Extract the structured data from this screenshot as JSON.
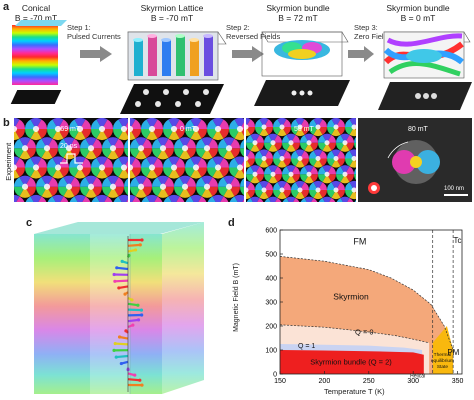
{
  "panel_a": {
    "label": "a",
    "stages": [
      {
        "title": "Conical",
        "field": "B = -70 mT"
      },
      {
        "title": "Skyrmion Lattice",
        "field": "B = -70 mT"
      },
      {
        "title": "Skyrmion bundle",
        "field": "B = 72 mT"
      },
      {
        "title": "Skyrmion bundle",
        "field": "B = 0 mT"
      }
    ],
    "steps": [
      {
        "line1": "Step 1:",
        "line2": "Pulsed Currents"
      },
      {
        "line1": "Step 2:",
        "line2": "Reversed Fields"
      },
      {
        "line1": "Step 3:",
        "line2": "Zero Fields"
      }
    ]
  },
  "panel_b": {
    "label": "b",
    "side_label": "Experiment",
    "frames": [
      "-69 mT",
      "0 mT",
      "58 mT",
      "80 mT"
    ],
    "pulse_label": "20 ns",
    "scale_label": "100 nm"
  },
  "panel_c": {
    "label": "c"
  },
  "panel_d": {
    "label": "d",
    "xlabel": "Temperature T (K)",
    "ylabel": "Magnetic Field B (mT)",
    "regions": {
      "fm": "FM",
      "skyrmion": "Skyrmion",
      "q0": "Q = 0",
      "q1": "Q = 1",
      "bundle": "Skyrmion bundle (Q = 2)",
      "pm": "PM",
      "thermal": [
        "Thermal",
        "equilibrium",
        "State"
      ],
      "helical": "Helical",
      "tc": "Tc"
    },
    "colors": {
      "skyrmion": "#f4a87a",
      "q0": "#fbe3d6",
      "q1": "#c9d3f2",
      "bundle": "#ee1f1f",
      "thermal": "#f9b80e"
    }
  },
  "chart_data": {
    "type": "area",
    "xlabel": "Temperature T (K)",
    "ylabel": "Magnetic Field B (mT)",
    "xlim": [
      150,
      355
    ],
    "ylim": [
      0,
      600
    ],
    "xticks": [
      150,
      200,
      250,
      300,
      350
    ],
    "yticks": [
      0,
      100,
      200,
      300,
      400,
      500,
      600
    ],
    "series": [
      {
        "name": "Skyrmion",
        "x": [
          150,
          200,
          250,
          275,
          300,
          320,
          335,
          345
        ],
        "y": [
          490,
          470,
          435,
          400,
          350,
          290,
          200,
          100
        ]
      },
      {
        "name": "Q = 0",
        "x": [
          150,
          200,
          250,
          280,
          300,
          318
        ],
        "y": [
          205,
          195,
          175,
          160,
          145,
          130
        ]
      },
      {
        "name": "Q = 1",
        "x": [
          150,
          200,
          250,
          290,
          310
        ],
        "y": [
          125,
          122,
          118,
          110,
          100
        ]
      },
      {
        "name": "Skyrmion bundle (Q = 2)",
        "x": [
          150,
          200,
          250,
          300,
          312
        ],
        "y": [
          100,
          98,
          95,
          90,
          80
        ]
      }
    ],
    "vlines": [
      {
        "x": 322
      },
      {
        "x": 345,
        "label": "Tc"
      }
    ]
  }
}
